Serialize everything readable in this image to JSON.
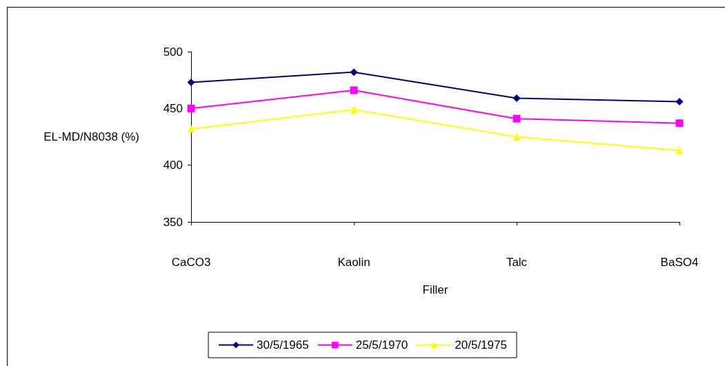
{
  "chart_data": {
    "type": "line",
    "xlabel": "Filler",
    "ylabel": "EL-MD/N8038 (%)",
    "categories": [
      "CaCO3",
      "Kaolin",
      "Talc",
      "BaSO4"
    ],
    "series": [
      {
        "name": "30/5/1965",
        "color": "#000080",
        "marker": "diamond",
        "values": [
          473,
          482,
          459,
          456
        ]
      },
      {
        "name": "25/5/1970",
        "color": "#ff00ff",
        "marker": "square",
        "values": [
          450,
          466,
          441,
          437
        ]
      },
      {
        "name": "20/5/1975",
        "color": "#ffff00",
        "marker": "triangle",
        "values": [
          432,
          449,
          425,
          413
        ]
      }
    ],
    "ylim": [
      350,
      500
    ],
    "yticks": [
      350,
      400,
      450,
      500
    ],
    "grid": false,
    "legend": "bottom",
    "line_style": "solid"
  }
}
